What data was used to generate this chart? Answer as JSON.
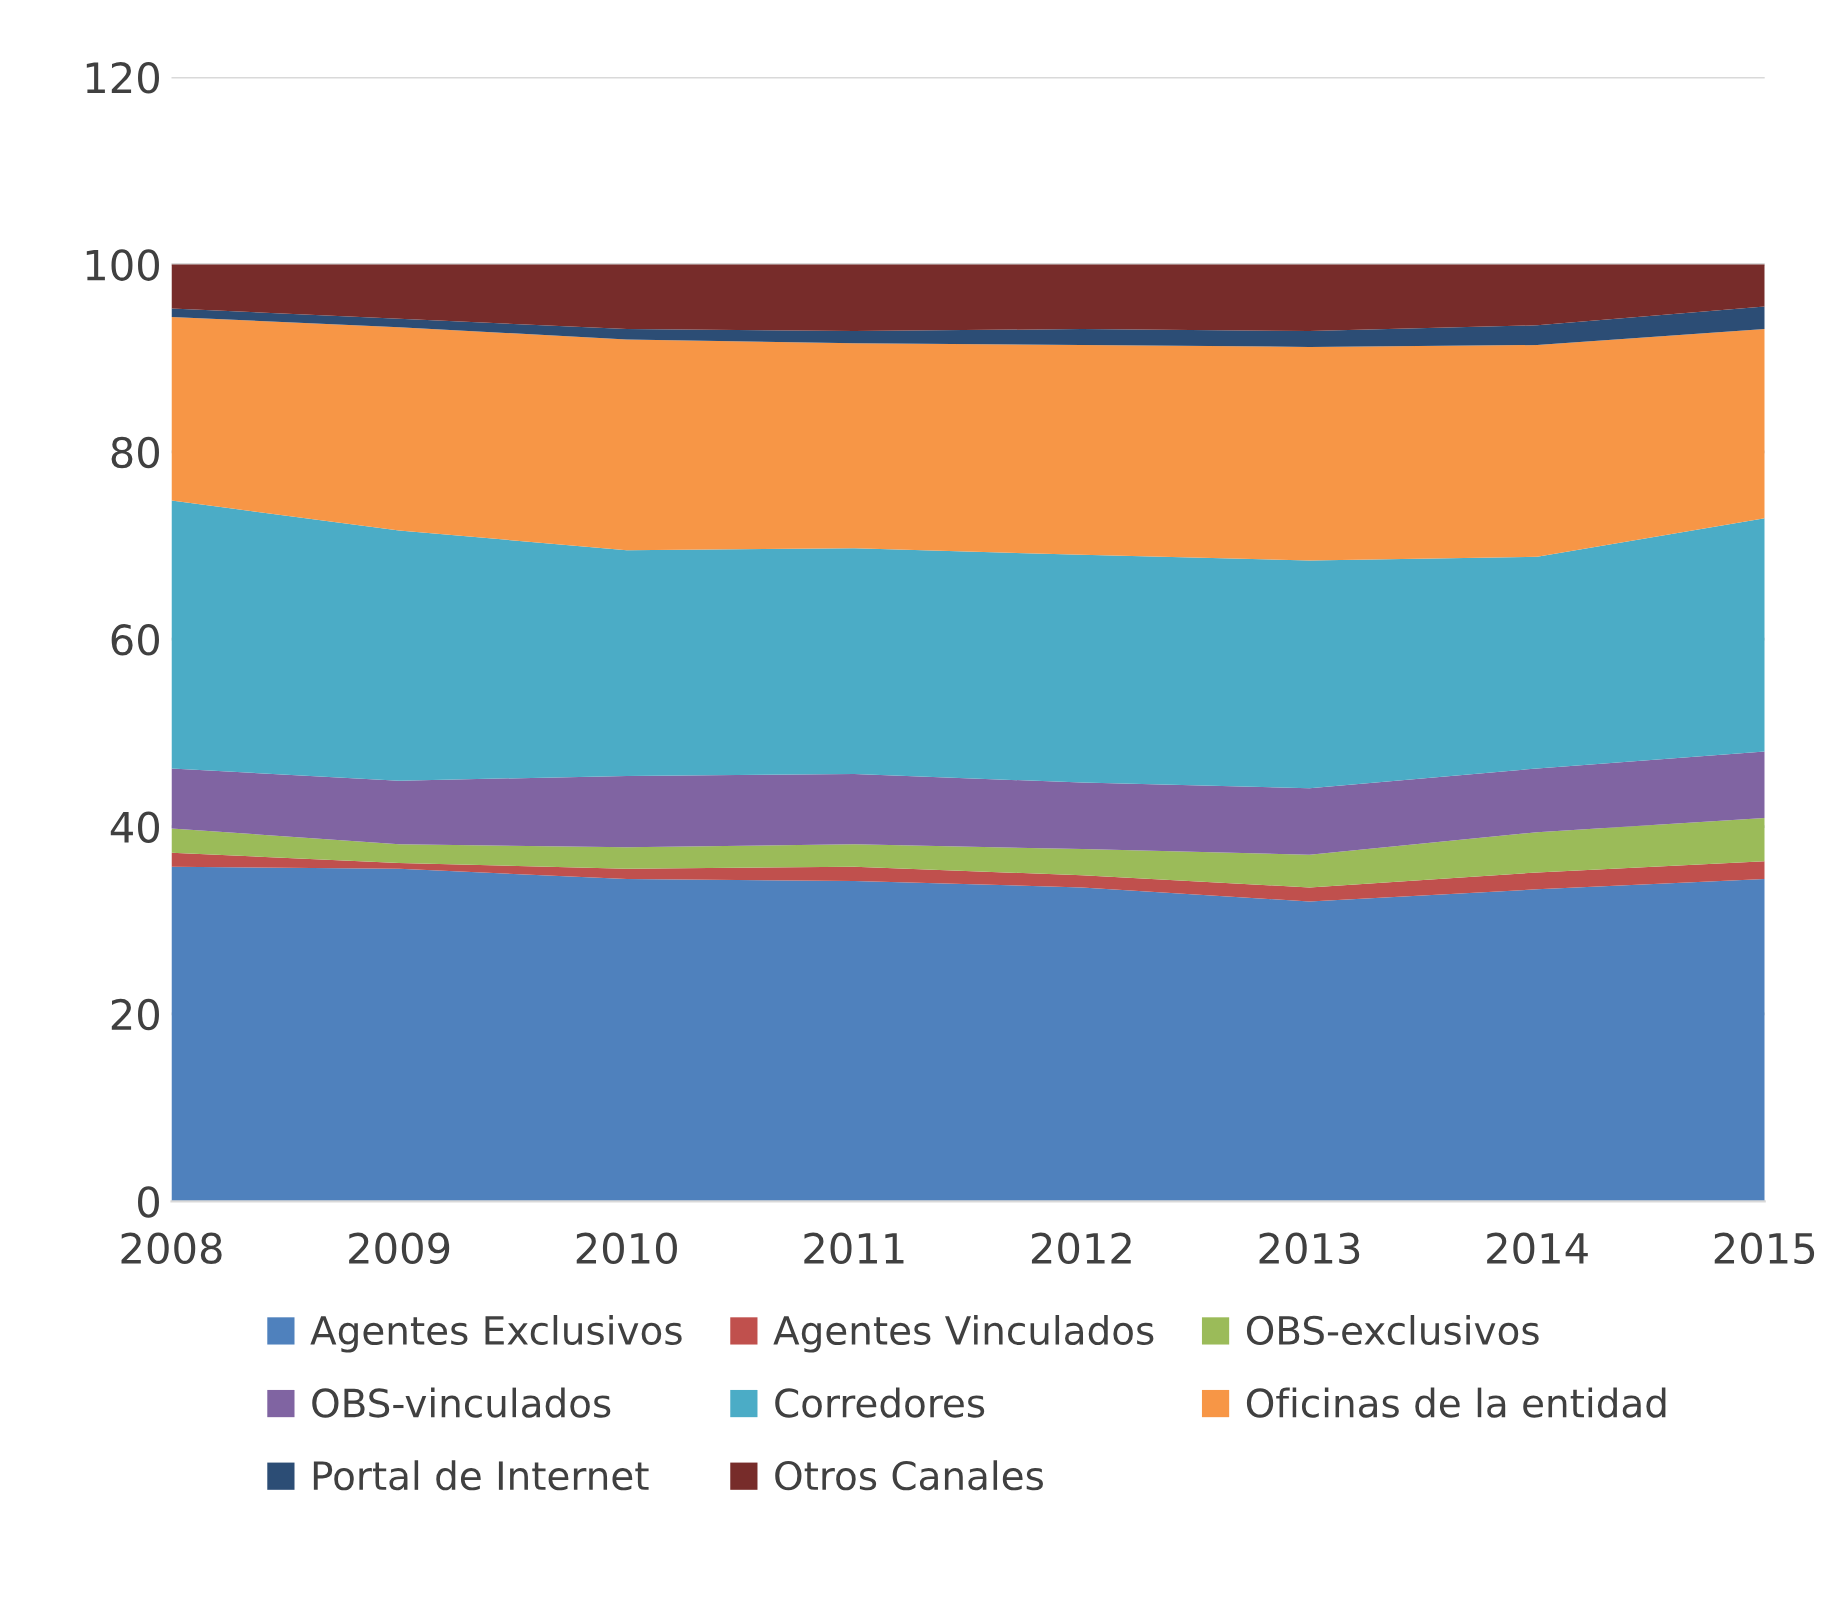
{
  "chart_data": {
    "type": "area",
    "stacked": true,
    "categories": [
      "2008",
      "2009",
      "2010",
      "2011",
      "2012",
      "2013",
      "2014",
      "2015"
    ],
    "ylim": [
      0,
      120
    ],
    "yticks": [
      0,
      20,
      40,
      60,
      80,
      100,
      120
    ],
    "grid": "y",
    "legend": "bottom",
    "series": [
      {
        "name": "Agentes Exclusivos",
        "color": "#4f81bd",
        "values": [
          35.7,
          35.5,
          34.4,
          34.2,
          33.5,
          32.0,
          33.3,
          34.4
        ]
      },
      {
        "name": "Agentes Vinculados",
        "color": "#c0504d",
        "values": [
          1.5,
          0.6,
          1.1,
          1.5,
          1.3,
          1.5,
          1.8,
          1.9
        ]
      },
      {
        "name": "OBS-exclusivos",
        "color": "#9bbb59",
        "values": [
          2.6,
          2.0,
          2.3,
          2.4,
          2.8,
          3.5,
          4.3,
          4.6
        ]
      },
      {
        "name": "OBS-vinculados",
        "color": "#8064a2",
        "values": [
          6.4,
          6.8,
          7.6,
          7.5,
          7.1,
          7.1,
          6.8,
          7.1
        ]
      },
      {
        "name": "Corredores",
        "color": "#4bacc6",
        "values": [
          28.6,
          26.7,
          24.1,
          24.1,
          24.3,
          24.3,
          22.6,
          24.9
        ]
      },
      {
        "name": "Oficinas de la entidad",
        "color": "#f79646",
        "values": [
          19.6,
          21.7,
          22.5,
          21.9,
          22.4,
          22.8,
          22.6,
          20.2
        ]
      },
      {
        "name": "Portal de Internet",
        "color": "#2c4d75",
        "values": [
          0.9,
          0.9,
          1.1,
          1.3,
          1.7,
          1.7,
          2.1,
          2.4
        ]
      },
      {
        "name": "Otros Canales",
        "color": "#772c2a",
        "values": [
          4.7,
          5.8,
          6.9,
          7.1,
          6.9,
          7.1,
          6.5,
          4.5
        ]
      }
    ]
  }
}
